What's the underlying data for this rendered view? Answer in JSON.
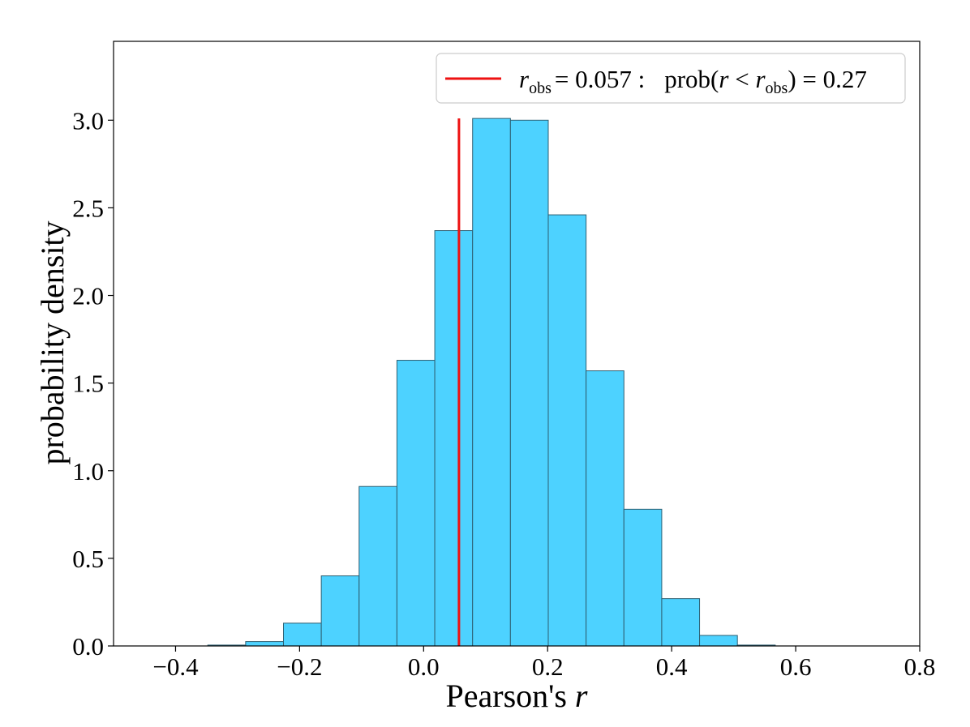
{
  "chart_data": {
    "type": "bar",
    "subtype": "histogram",
    "xlabel_text": "Pearson's ",
    "xlabel_var": "r",
    "ylabel": "probability density",
    "xlim": [
      -0.5,
      0.8
    ],
    "ylim": [
      0.0,
      3.45
    ],
    "xticks": [
      -0.4,
      -0.2,
      0.0,
      0.2,
      0.4,
      0.6,
      0.8
    ],
    "xtick_labels": [
      "−0.4",
      "−0.2",
      "0.0",
      "0.2",
      "0.4",
      "0.6",
      "0.8"
    ],
    "yticks": [
      0.0,
      0.5,
      1.0,
      1.5,
      2.0,
      2.5,
      3.0
    ],
    "ytick_labels": [
      "0.0",
      "0.5",
      "1.0",
      "1.5",
      "2.0",
      "2.5",
      "3.0"
    ],
    "bin_edges": [
      -0.348,
      -0.287,
      -0.226,
      -0.165,
      -0.104,
      -0.043,
      0.018,
      0.079,
      0.14,
      0.201,
      0.262,
      0.323,
      0.384,
      0.445,
      0.506,
      0.567
    ],
    "values": [
      0.005,
      0.025,
      0.13,
      0.4,
      0.91,
      1.63,
      2.37,
      3.01,
      3.0,
      2.46,
      1.57,
      0.78,
      0.27,
      0.06,
      0.005
    ],
    "bar_color": "#4dd2ff",
    "edge_color": "#2e5f72",
    "observed_line": {
      "x": 0.057,
      "y_top": 3.01,
      "color": "#ee1111"
    },
    "legend": {
      "position": "upper-right",
      "r_symbol": "r",
      "obs_sub": "obs",
      "eq_value": "= 0.057 :",
      "prob_prefix": "prob(",
      "lt": " < ",
      "close_value": ") = 0.27"
    }
  }
}
